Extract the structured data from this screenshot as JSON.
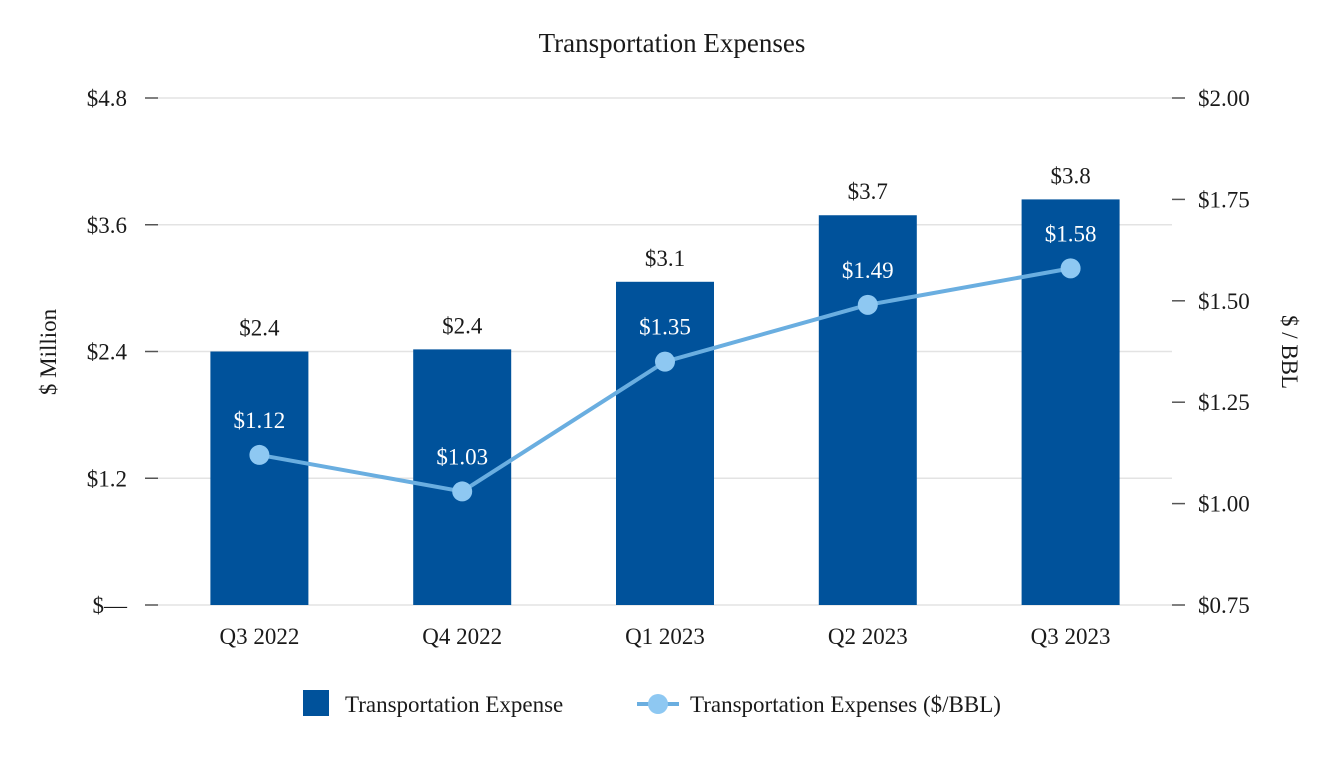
{
  "chart_data": {
    "type": "bar",
    "title": "Transportation Expenses",
    "categories": [
      "Q3 2022",
      "Q4 2022",
      "Q1 2023",
      "Q2 2023",
      "Q3 2023"
    ],
    "y_left": {
      "label": "$ Million",
      "ticks": [
        "$—",
        "$1.2",
        "$2.4",
        "$3.6",
        "$4.8"
      ],
      "tick_values": [
        0,
        1.2,
        2.4,
        3.6,
        4.8
      ],
      "ylim": [
        0,
        4.8
      ]
    },
    "y_right": {
      "label": "$ / BBL",
      "ticks": [
        "$0.75",
        "$1.00",
        "$1.25",
        "$1.50",
        "$1.75",
        "$2.00"
      ],
      "tick_values": [
        0.75,
        1.0,
        1.25,
        1.5,
        1.75,
        2.0
      ],
      "ylim": [
        0.75,
        2.0
      ]
    },
    "series": [
      {
        "name": "Transportation Expense",
        "type": "bar",
        "axis": "left",
        "values": [
          2.4,
          2.42,
          3.06,
          3.69,
          3.84
        ],
        "labels": [
          "$2.4",
          "$2.4",
          "$3.1",
          "$3.7",
          "$3.8"
        ],
        "color": "#00529b"
      },
      {
        "name": "Transportation Expenses ($/BBL)",
        "type": "line",
        "axis": "right",
        "values": [
          1.12,
          1.03,
          1.35,
          1.49,
          1.58
        ],
        "labels": [
          "$1.12",
          "$1.03",
          "$1.35",
          "$1.49",
          "$1.58"
        ],
        "color": "#6aaee0",
        "marker_color": "#8ec8f2"
      }
    ],
    "legend": "bottom-center",
    "grid": true
  }
}
